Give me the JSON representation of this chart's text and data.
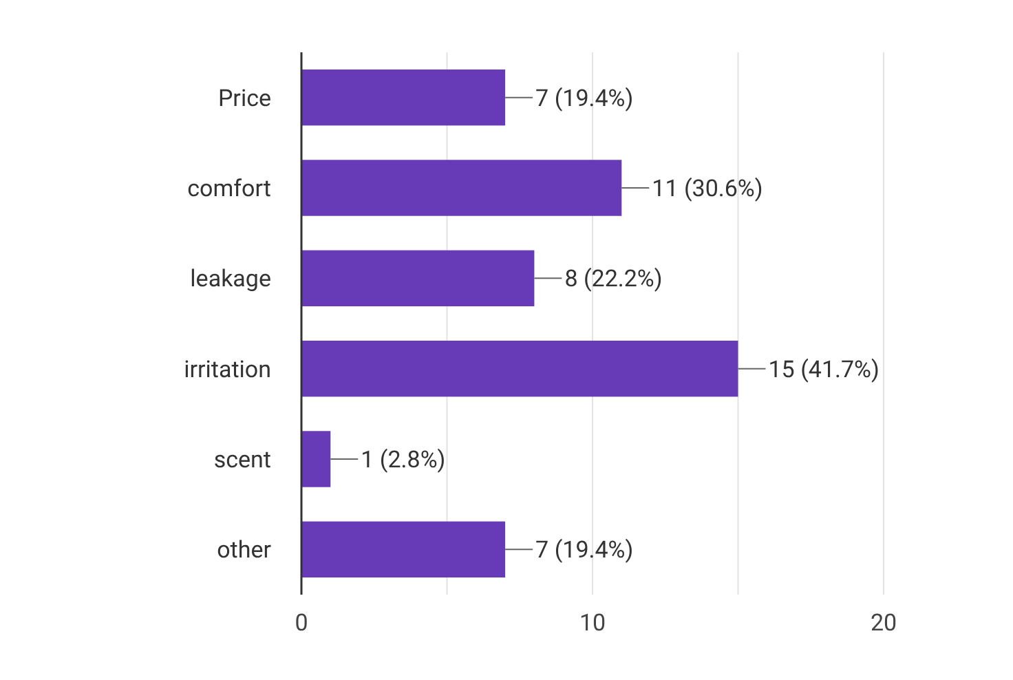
{
  "chart_data": {
    "type": "bar",
    "orientation": "horizontal",
    "categories": [
      "Price",
      "comfort",
      "leakage",
      "irritation",
      "scent",
      "other"
    ],
    "values": [
      7,
      11,
      8,
      15,
      1,
      7
    ],
    "color": "#673ab7",
    "value_labels": [
      "7 (19.4%)",
      "11 (30.6%)",
      "8 (22.2%)",
      "15 (41.7%)",
      "1 (2.8%)",
      "7 (19.4%)"
    ],
    "xlim": [
      0,
      20
    ],
    "xticks": [
      0,
      {
        "value": 5,
        "label": null
      },
      10,
      {
        "value": 15,
        "label": null
      },
      20
    ],
    "grid": "x"
  }
}
